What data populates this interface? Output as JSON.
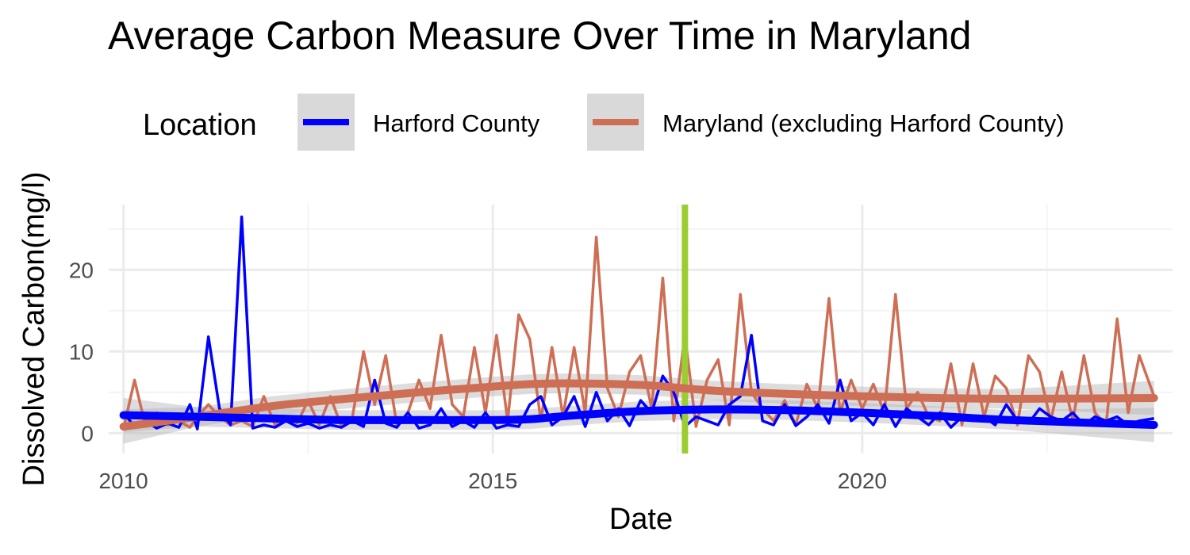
{
  "chart_data": {
    "type": "line",
    "title": "Average Carbon Measure Over Time in Maryland",
    "xlabel": "Date",
    "ylabel": "Dissolved Carbon(mg/l)",
    "xlim": [
      2009.8,
      2024.2
    ],
    "ylim": [
      -2.5,
      28
    ],
    "x_ticks": [
      2010,
      2015,
      2020
    ],
    "y_ticks": [
      0,
      10,
      20
    ],
    "grid": true,
    "legend": {
      "title": "Location",
      "placement": "top",
      "entries": [
        "Harford County",
        "Maryland (excluding Harford County)"
      ]
    },
    "vertical_marker": {
      "x": 2017.6,
      "color": "#9acd32"
    },
    "series": [
      {
        "name": "Harford County",
        "color": "#0000ff",
        "x": [
          2010.0,
          2010.15,
          2010.3,
          2010.45,
          2010.6,
          2010.75,
          2010.9,
          2011.0,
          2011.15,
          2011.3,
          2011.45,
          2011.6,
          2011.75,
          2011.9,
          2012.05,
          2012.2,
          2012.35,
          2012.5,
          2012.65,
          2012.8,
          2012.95,
          2013.1,
          2013.25,
          2013.4,
          2013.55,
          2013.7,
          2013.85,
          2014.0,
          2014.15,
          2014.3,
          2014.45,
          2014.6,
          2014.75,
          2014.9,
          2015.05,
          2015.2,
          2015.35,
          2015.5,
          2015.65,
          2015.8,
          2015.95,
          2016.1,
          2016.25,
          2016.4,
          2016.55,
          2016.7,
          2016.85,
          2017.0,
          2017.15,
          2017.3,
          2017.45,
          2017.6,
          2017.75,
          2017.9,
          2018.05,
          2018.2,
          2018.35,
          2018.5,
          2018.65,
          2018.8,
          2018.95,
          2019.1,
          2019.25,
          2019.4,
          2019.55,
          2019.7,
          2019.85,
          2020.0,
          2020.15,
          2020.3,
          2020.45,
          2020.6,
          2020.75,
          2020.9,
          2021.05,
          2021.2,
          2021.35,
          2021.5,
          2021.65,
          2021.8,
          2021.95,
          2022.1,
          2022.25,
          2022.4,
          2022.55,
          2022.7,
          2022.85,
          2023.0,
          2023.15,
          2023.3,
          2023.45,
          2023.6,
          2023.75,
          2023.95
        ],
        "values": [
          2.5,
          0.8,
          1.5,
          0.6,
          1.2,
          0.7,
          3.5,
          0.5,
          11.8,
          3.0,
          1.0,
          26.5,
          0.6,
          1.0,
          0.7,
          1.5,
          0.8,
          1.2,
          0.6,
          1.0,
          0.7,
          1.5,
          0.8,
          6.5,
          1.2,
          0.7,
          2.5,
          0.6,
          1.0,
          3.0,
          0.8,
          1.5,
          0.7,
          2.5,
          0.6,
          1.0,
          0.8,
          3.5,
          4.5,
          1.0,
          2.0,
          4.5,
          0.8,
          5.0,
          1.5,
          3.0,
          0.9,
          4.0,
          2.5,
          7.0,
          5.0,
          0.8,
          2.0,
          1.5,
          1.0,
          3.5,
          4.5,
          12.0,
          1.5,
          1.0,
          3.5,
          0.9,
          2.0,
          3.5,
          1.2,
          6.5,
          1.5,
          2.5,
          1.0,
          3.5,
          0.8,
          3.0,
          2.0,
          1.0,
          2.5,
          0.7,
          2.0,
          1.5,
          2.0,
          1.0,
          3.5,
          1.5,
          1.2,
          3.0,
          2.0,
          1.5,
          2.5,
          1.0,
          2.0,
          1.5,
          2.0,
          1.0,
          1.5,
          1.8
        ],
        "trend": [
          2.2,
          2.0,
          1.8,
          1.6,
          1.6,
          1.6,
          1.7,
          2.1,
          2.7,
          2.9,
          2.8,
          2.5,
          2.1,
          1.6,
          1.0
        ],
        "trend_x": [
          2010,
          2011,
          2012,
          2013,
          2014,
          2015,
          2015.5,
          2016,
          2017,
          2018,
          2019,
          2020,
          2021,
          2022,
          2023.95
        ]
      },
      {
        "name": "Maryland (excluding Harford County)",
        "color": "#cd6e55",
        "x": [
          2010.0,
          2010.15,
          2010.3,
          2010.45,
          2010.6,
          2010.75,
          2010.9,
          2011.0,
          2011.15,
          2011.3,
          2011.45,
          2011.6,
          2011.75,
          2011.9,
          2012.05,
          2012.2,
          2012.35,
          2012.5,
          2012.65,
          2012.8,
          2012.95,
          2013.1,
          2013.25,
          2013.4,
          2013.55,
          2013.7,
          2013.85,
          2014.0,
          2014.15,
          2014.3,
          2014.45,
          2014.6,
          2014.75,
          2014.9,
          2015.05,
          2015.2,
          2015.35,
          2015.5,
          2015.65,
          2015.8,
          2015.95,
          2016.1,
          2016.25,
          2016.4,
          2016.55,
          2016.7,
          2016.85,
          2017.0,
          2017.15,
          2017.3,
          2017.45,
          2017.6,
          2017.75,
          2017.9,
          2018.05,
          2018.2,
          2018.35,
          2018.5,
          2018.65,
          2018.8,
          2018.95,
          2019.1,
          2019.25,
          2019.4,
          2019.55,
          2019.7,
          2019.85,
          2020.0,
          2020.15,
          2020.3,
          2020.45,
          2020.6,
          2020.75,
          2020.9,
          2021.05,
          2021.2,
          2021.35,
          2021.5,
          2021.65,
          2021.8,
          2021.95,
          2022.1,
          2022.25,
          2022.4,
          2022.55,
          2022.7,
          2022.85,
          2023.0,
          2023.15,
          2023.3,
          2023.45,
          2023.6,
          2023.75,
          2023.95
        ],
        "values": [
          0.5,
          6.5,
          0.8,
          2.5,
          1.0,
          1.5,
          0.7,
          2.0,
          3.5,
          2.0,
          1.0,
          1.5,
          0.8,
          4.5,
          1.0,
          2.0,
          1.2,
          4.0,
          1.0,
          4.5,
          0.8,
          2.0,
          10.0,
          3.5,
          9.5,
          1.0,
          2.5,
          6.5,
          3.0,
          12.0,
          3.5,
          2.0,
          10.5,
          2.5,
          12.0,
          1.5,
          14.5,
          11.5,
          1.5,
          10.5,
          2.0,
          10.5,
          2.5,
          24.0,
          5.5,
          2.0,
          7.5,
          9.5,
          3.0,
          19.0,
          1.5,
          12.0,
          0.8,
          6.5,
          9.0,
          1.0,
          17.0,
          5.0,
          3.0,
          1.5,
          4.0,
          1.0,
          6.0,
          3.0,
          16.5,
          2.5,
          6.5,
          3.0,
          6.0,
          2.5,
          17.0,
          3.0,
          5.0,
          2.0,
          1.5,
          8.5,
          1.0,
          8.5,
          2.0,
          7.0,
          5.5,
          1.0,
          9.5,
          7.5,
          1.5,
          7.5,
          1.5,
          9.5,
          2.5,
          1.0,
          14.0,
          2.5,
          9.5,
          4.5
        ],
        "trend": [
          0.8,
          2.0,
          3.3,
          4.2,
          5.0,
          5.7,
          6.0,
          6.1,
          5.9,
          5.2,
          4.8,
          4.5,
          4.3,
          4.2,
          4.3
        ],
        "trend_x": [
          2010,
          2011,
          2012,
          2013,
          2014,
          2015,
          2015.5,
          2016,
          2017,
          2018,
          2019,
          2020,
          2021,
          2022,
          2023.95
        ]
      }
    ]
  }
}
